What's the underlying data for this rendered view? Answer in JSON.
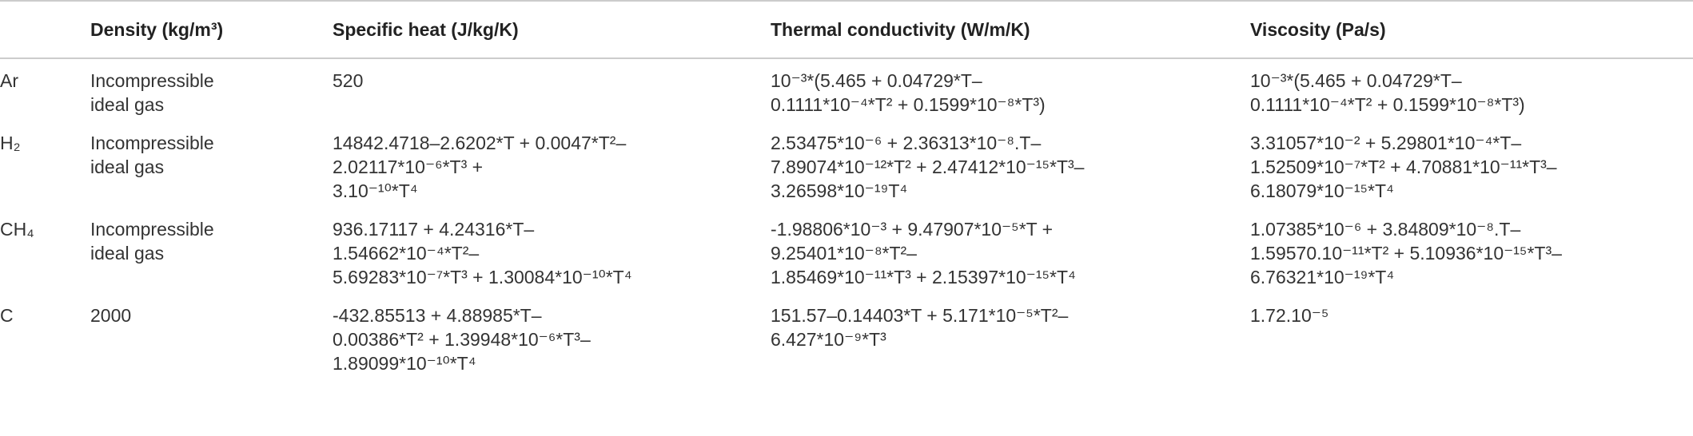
{
  "table": {
    "columns": [
      "Density (kg/m³)",
      "Specific heat (J/kg/K)",
      "Thermal conductivity (W/m/K)",
      "Viscosity (Pa/s)"
    ],
    "rows": [
      {
        "label": "Ar",
        "cells": [
          [
            "Incompressible",
            "ideal gas"
          ],
          [
            "520"
          ],
          [
            "10⁻³*(5.465 + 0.04729*T–",
            "0.1111*10⁻⁴*T² + 0.1599*10⁻⁸*T³)"
          ],
          [
            "10⁻³*(5.465 + 0.04729*T–",
            "0.1111*10⁻⁴*T² + 0.1599*10⁻⁸*T³)"
          ]
        ]
      },
      {
        "label": "H₂",
        "cells": [
          [
            "Incompressible",
            "ideal gas"
          ],
          [
            "14842.4718–2.6202*T + 0.0047*T²–",
            "2.02117*10⁻⁶*T³ +",
            "3.10⁻¹⁰*T⁴"
          ],
          [
            "2.53475*10⁻⁶ + 2.36313*10⁻⁸.T–",
            "7.89074*10⁻¹²*T² + 2.47412*10⁻¹⁵*T³–",
            "3.26598*10⁻¹⁹T⁴"
          ],
          [
            "3.31057*10⁻² + 5.29801*10⁻⁴*T–",
            "1.52509*10⁻⁷*T² + 4.70881*10⁻¹¹*T³–",
            "6.18079*10⁻¹⁵*T⁴"
          ]
        ]
      },
      {
        "label": "CH₄",
        "cells": [
          [
            "Incompressible",
            "ideal gas"
          ],
          [
            "936.17117 + 4.24316*T–",
            "1.54662*10⁻⁴*T²–",
            "5.69283*10⁻⁷*T³ + 1.30084*10⁻¹⁰*T⁴"
          ],
          [
            "-1.98806*10⁻³ + 9.47907*10⁻⁵*T +",
            "9.25401*10⁻⁸*T²–",
            "1.85469*10⁻¹¹*T³ + 2.15397*10⁻¹⁵*T⁴"
          ],
          [
            "1.07385*10⁻⁶ + 3.84809*10⁻⁸.T–",
            "1.59570.10⁻¹¹*T² + 5.10936*10⁻¹⁵*T³–",
            "6.76321*10⁻¹⁹*T⁴"
          ]
        ]
      },
      {
        "label": "C",
        "cells": [
          [
            "2000"
          ],
          [
            "-432.85513 + 4.88985*T–",
            "0.00386*T² + 1.39948*10⁻⁶*T³–",
            "1.89099*10⁻¹⁰*T⁴"
          ],
          [
            "151.57–0.14403*T + 5.171*10⁻⁵*T²–",
            "6.427*10⁻⁹*T³"
          ],
          [
            "1.72.10⁻⁵"
          ]
        ]
      }
    ]
  }
}
